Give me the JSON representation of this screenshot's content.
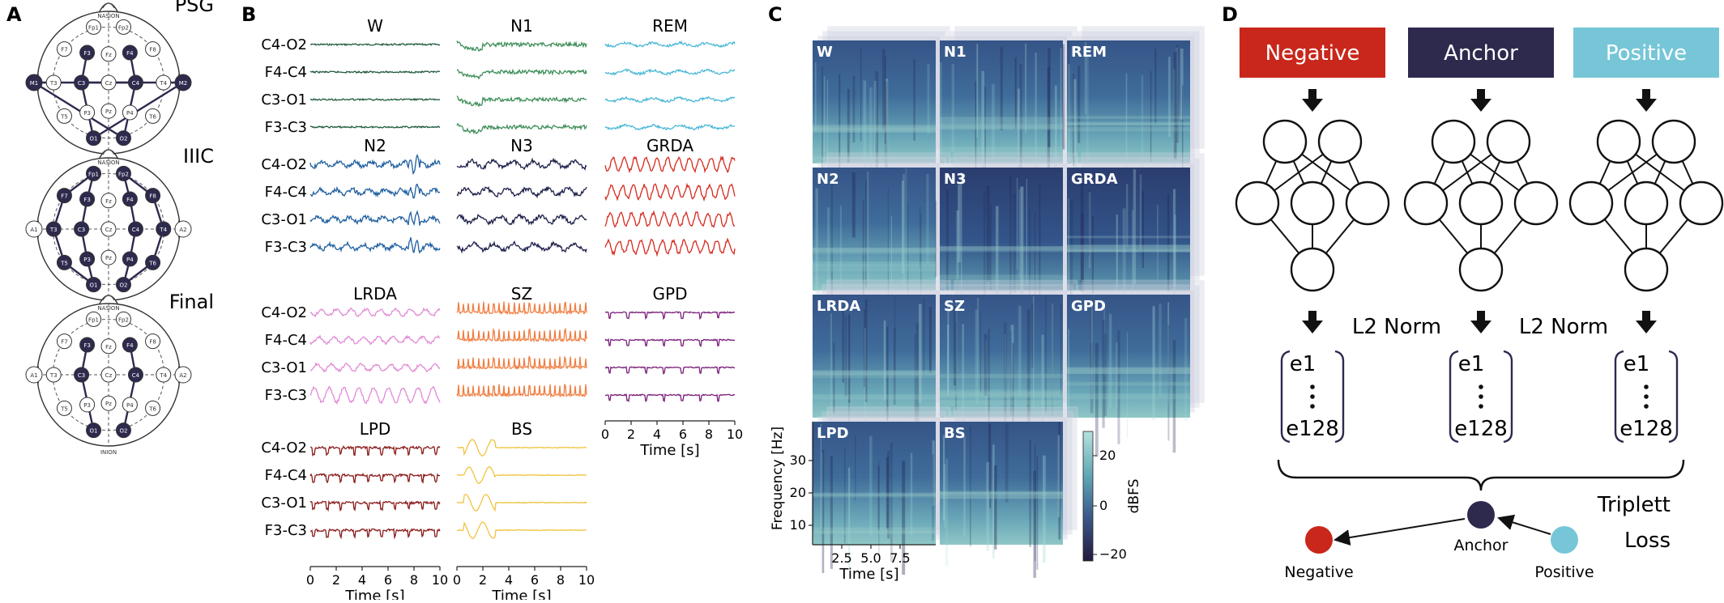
{
  "panel_labels": [
    "A",
    "B",
    "C",
    "D"
  ],
  "panel_a": {
    "montages": [
      {
        "title": "PSG",
        "highlighted": [
          "F3",
          "F4",
          "C3",
          "C4",
          "O1",
          "O2",
          "M1",
          "M2"
        ],
        "links": [
          [
            "M1",
            "C4"
          ],
          [
            "M2",
            "C3"
          ],
          [
            "M1",
            "O2"
          ],
          [
            "M2",
            "O1"
          ],
          [
            "F3",
            "C3"
          ],
          [
            "C3",
            "O1"
          ],
          [
            "F4",
            "C4"
          ],
          [
            "C4",
            "O2"
          ]
        ]
      },
      {
        "title": "IIIC",
        "highlighted": [
          "Fp1",
          "Fp2",
          "F7",
          "F3",
          "F4",
          "F8",
          "T3",
          "C3",
          "C4",
          "T4",
          "T5",
          "P3",
          "P4",
          "T6",
          "O1",
          "O2"
        ],
        "links": [
          [
            "Fp1",
            "F7"
          ],
          [
            "F7",
            "T3"
          ],
          [
            "T3",
            "T5"
          ],
          [
            "T5",
            "O1"
          ],
          [
            "Fp1",
            "F3"
          ],
          [
            "F3",
            "C3"
          ],
          [
            "C3",
            "P3"
          ],
          [
            "P3",
            "O1"
          ],
          [
            "Fp2",
            "F8"
          ],
          [
            "F8",
            "T4"
          ],
          [
            "T4",
            "T6"
          ],
          [
            "T6",
            "O2"
          ],
          [
            "Fp2",
            "F4"
          ],
          [
            "F4",
            "C4"
          ],
          [
            "C4",
            "P4"
          ],
          [
            "P4",
            "O2"
          ]
        ]
      },
      {
        "title": "Final",
        "highlighted": [
          "F3",
          "C3",
          "O1",
          "F4",
          "C4",
          "O2"
        ],
        "links": [
          [
            "F3",
            "C3"
          ],
          [
            "C3",
            "O1"
          ],
          [
            "F4",
            "C4"
          ],
          [
            "C4",
            "O2"
          ]
        ]
      }
    ],
    "nasion": "NASION",
    "inion": "INION"
  },
  "panel_b": {
    "channels": [
      "C4-O2",
      "F4-C4",
      "C3-O1",
      "F3-C3"
    ],
    "stages": [
      {
        "name": "W",
        "color": "#1f5a3c"
      },
      {
        "name": "N1",
        "color": "#3f8f5a"
      },
      {
        "name": "REM",
        "color": "#4ab8d6"
      },
      {
        "name": "N2",
        "color": "#2060a0"
      },
      {
        "name": "N3",
        "color": "#1c1f4a"
      },
      {
        "name": "GRDA",
        "color": "#d62a1e"
      },
      {
        "name": "LRDA",
        "color": "#e28ad6"
      },
      {
        "name": "SZ",
        "color": "#f07d40"
      },
      {
        "name": "GPD",
        "color": "#7a1f7a"
      },
      {
        "name": "LPD",
        "color": "#8b1a1a"
      },
      {
        "name": "BS",
        "color": "#f0c440"
      }
    ],
    "x_ticks": [
      "0",
      "2",
      "4",
      "6",
      "8",
      "10"
    ],
    "x_label": "Time [s]"
  },
  "panel_c": {
    "tiles": [
      "W",
      "N1",
      "REM",
      "N2",
      "N3",
      "GRDA",
      "LRDA",
      "SZ",
      "GPD",
      "LPD",
      "BS"
    ],
    "y_label": "Frequency [Hz]",
    "y_ticks": [
      "10",
      "20",
      "30"
    ],
    "x_label": "Time [s]",
    "x_ticks": [
      "2.5",
      "5.0",
      "7.5"
    ],
    "colorbar_label": "dBFS",
    "colorbar_ticks": [
      "20",
      "0",
      "−20"
    ]
  },
  "panel_d": {
    "boxes": [
      {
        "label": "Negative",
        "color": "#c9271b",
        "text_color": "#ffffff"
      },
      {
        "label": "Anchor",
        "color": "#2d2a4e",
        "text_color": "#ffffff"
      },
      {
        "label": "Positive",
        "color": "#77c6d8",
        "text_color": "#ffffff"
      }
    ],
    "norm_label": "L2 Norm",
    "vector_top": "e1",
    "vector_bottom": "e128",
    "loss_line1": "Triplett",
    "loss_line2": "Loss",
    "dots": [
      {
        "label": "Negative",
        "color": "#c9271b"
      },
      {
        "label": "Anchor",
        "color": "#2d2a4e"
      },
      {
        "label": "Positive",
        "color": "#77c6d8"
      }
    ]
  }
}
